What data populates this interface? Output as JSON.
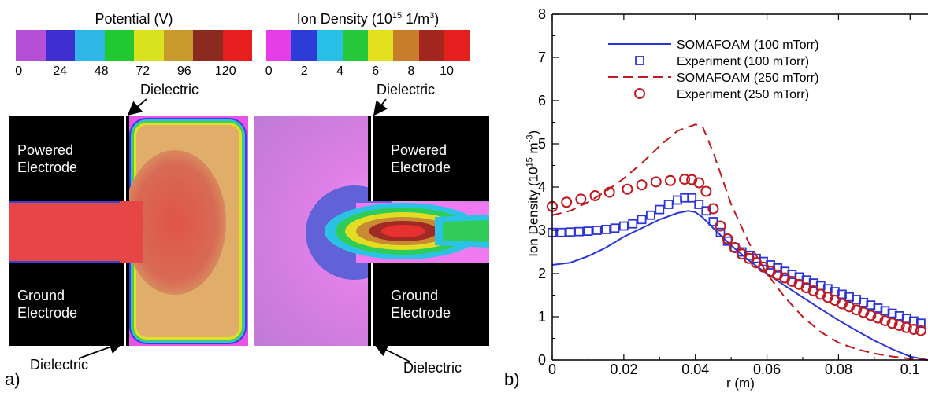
{
  "panel_a": {
    "label": "a)",
    "potential_colorbar": {
      "title": "Potential (V)",
      "ticks": [
        "0",
        "24",
        "48",
        "72",
        "96",
        "120"
      ],
      "colors": [
        "#b44fd6",
        "#3d2fd0",
        "#2fb6e8",
        "#22c830",
        "#d8e21e",
        "#c89a2c",
        "#8b2a1e",
        "#e61e1e"
      ]
    },
    "density_colorbar": {
      "title_main": "Ion Density (10",
      "title_sup1": "15",
      "title_mid": " 1/m",
      "title_sup2": "3",
      "title_end": ")",
      "ticks": [
        "0",
        "2",
        "4",
        "6",
        "8",
        "10"
      ],
      "colors": [
        "#e63ee6",
        "#2c3cd6",
        "#29c0e8",
        "#25c83a",
        "#e2e01f",
        "#c87d2b",
        "#a3261e",
        "#e61e1e"
      ]
    },
    "powered_electrode": "Powered\nElectrode",
    "ground_electrode": "Ground\nElectrode",
    "dielectric_label": "Dielectric"
  },
  "panel_b": {
    "label": "b)"
  },
  "chart_data": {
    "type": "line",
    "xlabel": "r (m)",
    "ylabel_main": "Ion Density (10",
    "ylabel_sup1": "15",
    "ylabel_mid": " m",
    "ylabel_sup2": "-3",
    "ylabel_end": ")",
    "xlim": [
      0,
      0.105
    ],
    "ylim": [
      0,
      8
    ],
    "xticks": [
      "0",
      "0.02",
      "0.04",
      "0.06",
      "0.08",
      "0.1"
    ],
    "xtick_values": [
      0,
      0.02,
      0.04,
      0.06,
      0.08,
      0.1
    ],
    "yticks": [
      "0",
      "1",
      "2",
      "3",
      "4",
      "5",
      "6",
      "7",
      "8"
    ],
    "ytick_values": [
      0,
      1,
      2,
      3,
      4,
      5,
      6,
      7,
      8
    ],
    "legend_position": "top-right",
    "series": [
      {
        "name": "SOMAFOAM (100 mTorr)",
        "style": "solid-line",
        "color": "#2a35d6",
        "x": [
          0,
          0.005,
          0.01,
          0.015,
          0.02,
          0.025,
          0.03,
          0.035,
          0.038,
          0.04,
          0.042,
          0.045,
          0.05,
          0.055,
          0.06,
          0.065,
          0.07,
          0.075,
          0.08,
          0.085,
          0.09,
          0.095,
          0.1,
          0.105
        ],
        "y": [
          2.2,
          2.25,
          2.4,
          2.6,
          2.85,
          3.05,
          3.25,
          3.4,
          3.45,
          3.42,
          3.3,
          3.05,
          2.65,
          2.3,
          2.0,
          1.72,
          1.45,
          1.18,
          0.92,
          0.68,
          0.45,
          0.25,
          0.08,
          0.0
        ]
      },
      {
        "name": "Experiment (100 mTorr)",
        "style": "open-square",
        "color": "#2a35d6",
        "x": [
          0,
          0.0025,
          0.005,
          0.0075,
          0.01,
          0.0125,
          0.015,
          0.0175,
          0.02,
          0.0225,
          0.025,
          0.0275,
          0.03,
          0.0325,
          0.035,
          0.037,
          0.039,
          0.041,
          0.043,
          0.045,
          0.047,
          0.049,
          0.051,
          0.053,
          0.055,
          0.057,
          0.059,
          0.061,
          0.063,
          0.065,
          0.067,
          0.069,
          0.071,
          0.073,
          0.075,
          0.077,
          0.079,
          0.081,
          0.083,
          0.085,
          0.087,
          0.089,
          0.091,
          0.093,
          0.095,
          0.097,
          0.099,
          0.101,
          0.103
        ],
        "y": [
          2.95,
          2.95,
          2.96,
          2.97,
          2.98,
          3.0,
          3.02,
          3.05,
          3.1,
          3.15,
          3.25,
          3.35,
          3.48,
          3.6,
          3.7,
          3.75,
          3.75,
          3.6,
          3.45,
          3.2,
          2.95,
          2.75,
          2.6,
          2.5,
          2.42,
          2.35,
          2.28,
          2.2,
          2.13,
          2.05,
          1.98,
          1.92,
          1.85,
          1.78,
          1.72,
          1.65,
          1.58,
          1.52,
          1.46,
          1.4,
          1.33,
          1.27,
          1.2,
          1.14,
          1.08,
          1.02,
          0.96,
          0.9,
          0.85
        ]
      },
      {
        "name": "SOMAFOAM (250 mTorr)",
        "style": "dashed-line",
        "color": "#c0191f",
        "x": [
          0,
          0.005,
          0.01,
          0.015,
          0.02,
          0.025,
          0.03,
          0.035,
          0.04,
          0.042,
          0.045,
          0.05,
          0.055,
          0.06,
          0.065,
          0.07,
          0.075,
          0.08,
          0.085,
          0.09,
          0.095,
          0.1,
          0.105
        ],
        "y": [
          3.35,
          3.45,
          3.65,
          3.9,
          4.2,
          4.55,
          4.95,
          5.3,
          5.45,
          5.4,
          4.8,
          3.6,
          2.7,
          2.0,
          1.45,
          1.0,
          0.65,
          0.4,
          0.25,
          0.15,
          0.08,
          0.03,
          0.0
        ]
      },
      {
        "name": "Experiment (250 mTorr)",
        "style": "open-circle",
        "color": "#c0191f",
        "x": [
          0,
          0.004,
          0.008,
          0.012,
          0.016,
          0.021,
          0.025,
          0.029,
          0.033,
          0.037,
          0.039,
          0.041,
          0.043,
          0.045,
          0.047,
          0.049,
          0.051,
          0.053,
          0.055,
          0.057,
          0.059,
          0.061,
          0.063,
          0.065,
          0.067,
          0.069,
          0.071,
          0.073,
          0.075,
          0.077,
          0.079,
          0.081,
          0.083,
          0.085,
          0.087,
          0.089,
          0.091,
          0.093,
          0.095,
          0.097,
          0.099,
          0.101,
          0.103
        ],
        "y": [
          3.55,
          3.65,
          3.72,
          3.8,
          3.88,
          3.95,
          4.05,
          4.12,
          4.15,
          4.18,
          4.17,
          4.1,
          3.9,
          3.5,
          3.1,
          2.8,
          2.6,
          2.45,
          2.35,
          2.25,
          2.15,
          2.05,
          1.97,
          1.9,
          1.82,
          1.75,
          1.67,
          1.6,
          1.52,
          1.45,
          1.38,
          1.3,
          1.23,
          1.16,
          1.1,
          1.03,
          0.97,
          0.91,
          0.85,
          0.8,
          0.75,
          0.71,
          0.68
        ]
      }
    ]
  }
}
